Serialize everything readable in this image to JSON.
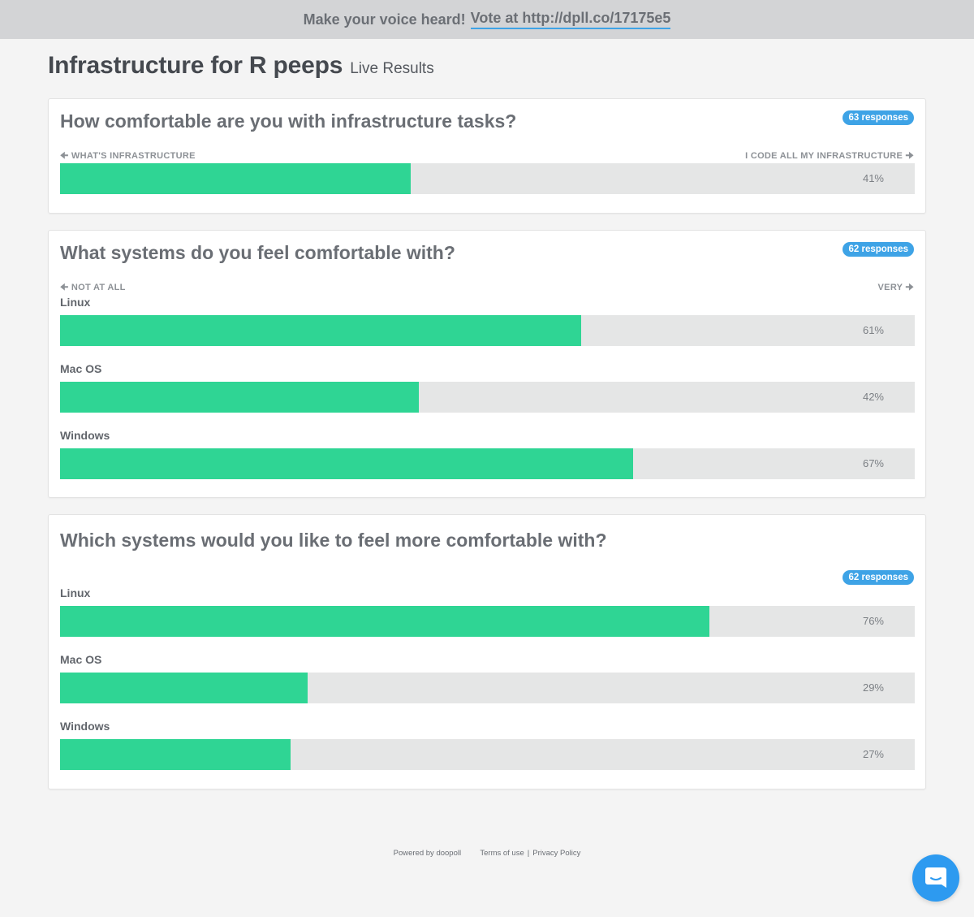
{
  "banner": {
    "text": "Make your voice heard!",
    "link": "Vote at http://dpll.co/17175e5"
  },
  "header": {
    "title": "Infrastructure for R peeps",
    "subtitle": "Live Results"
  },
  "polls": [
    {
      "question": "How comfortable are you with infrastructure tasks?",
      "responses": "63 responses",
      "scale_left": "WHAT'S INFRASTRUCTURE",
      "scale_right": "I CODE ALL MY INFRASTRUCTURE",
      "rows": [
        {
          "label": "",
          "value": 41,
          "pct": "41%"
        }
      ]
    },
    {
      "question": "What systems do you feel comfortable with?",
      "responses": "62 responses",
      "scale_left": "NOT AT ALL",
      "scale_right": "VERY",
      "rows": [
        {
          "label": "Linux",
          "value": 61,
          "pct": "61%"
        },
        {
          "label": "Mac OS",
          "value": 42,
          "pct": "42%"
        },
        {
          "label": "Windows",
          "value": 67,
          "pct": "67%"
        }
      ]
    },
    {
      "question": "Which systems would you like to feel more comfortable with?",
      "responses": "62 responses",
      "rows": [
        {
          "label": "Linux",
          "value": 76,
          "pct": "76%"
        },
        {
          "label": "Mac OS",
          "value": 29,
          "pct": "29%"
        },
        {
          "label": "Windows",
          "value": 27,
          "pct": "27%"
        }
      ]
    }
  ],
  "footer": {
    "powered": "Powered by doopoll",
    "terms": "Terms of use",
    "separator": "|",
    "privacy": "Privacy Policy"
  },
  "icons": {
    "chat": "chat-bubble-icon",
    "arrow_left": "arrow-left-icon",
    "arrow_right": "arrow-right-icon"
  },
  "colors": {
    "accent": "#3ea3e6",
    "fill": "#2fd594",
    "track": "#e5e6e6",
    "chat": "#2d9af0"
  }
}
